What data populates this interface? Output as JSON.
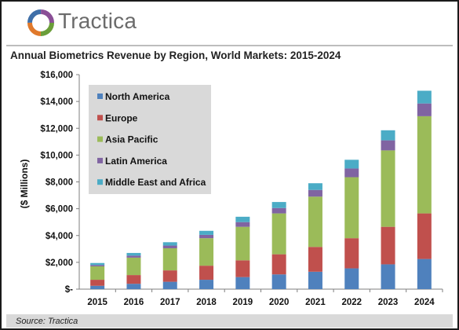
{
  "brand": {
    "name": "Tractica"
  },
  "source": "Source: Tractica",
  "colors": {
    "north_america": "#4f81bd",
    "europe": "#c0504d",
    "asia_pacific": "#9bbb59",
    "latin_america": "#8064a2",
    "middle_east_africa": "#4bacc6",
    "legend_background": "#d9d9d9"
  },
  "chart_data": {
    "type": "bar",
    "stacked": true,
    "title": "Annual Biometrics Revenue by Region, World Markets: 2015-2024",
    "xlabel": "",
    "ylabel": "($ Millions)",
    "ylim": [
      0,
      16000
    ],
    "y_ticks": [
      0,
      2000,
      4000,
      6000,
      8000,
      10000,
      12000,
      14000,
      16000
    ],
    "y_tick_labels": [
      "$-",
      "$2,000",
      "$4,000",
      "$6,000",
      "$8,000",
      "$10,000",
      "$12,000",
      "$14,000",
      "$16,000"
    ],
    "grid": false,
    "legend_position": "top-left",
    "categories": [
      "2015",
      "2016",
      "2017",
      "2018",
      "2019",
      "2020",
      "2021",
      "2022",
      "2023",
      "2024"
    ],
    "series": [
      {
        "name": "North America",
        "color": "#4f81bd",
        "values": [
          250,
          400,
          550,
          700,
          900,
          1100,
          1300,
          1550,
          1850,
          2250
        ]
      },
      {
        "name": "Europe",
        "color": "#c0504d",
        "values": [
          450,
          650,
          850,
          1050,
          1250,
          1500,
          1850,
          2250,
          2800,
          3400
        ]
      },
      {
        "name": "Asia Pacific",
        "color": "#9bbb59",
        "values": [
          1000,
          1300,
          1650,
          2050,
          2500,
          3050,
          3750,
          4550,
          5700,
          7250
        ]
      },
      {
        "name": "Latin America",
        "color": "#8064a2",
        "values": [
          100,
          150,
          200,
          250,
          350,
          400,
          500,
          650,
          750,
          950
        ]
      },
      {
        "name": "Middle East and Africa",
        "color": "#4bacc6",
        "values": [
          150,
          200,
          250,
          300,
          400,
          450,
          500,
          650,
          750,
          950
        ]
      }
    ]
  }
}
